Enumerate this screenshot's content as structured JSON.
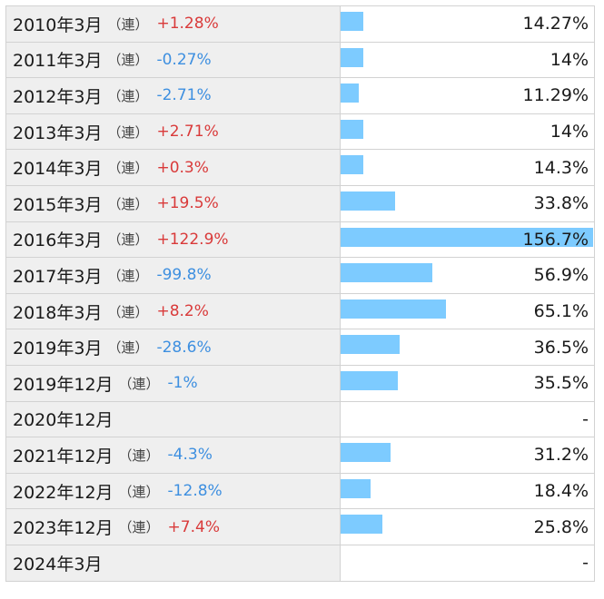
{
  "chart_data": {
    "type": "bar",
    "orientation": "horizontal",
    "max_value": 156.7,
    "rows": [
      {
        "period": "2010年3月",
        "cons": "（連）",
        "change": "+1.28%",
        "sign": "pos",
        "value": 14.27,
        "label": "14.27%"
      },
      {
        "period": "2011年3月",
        "cons": "（連）",
        "change": "-0.27%",
        "sign": "neg",
        "value": 14,
        "label": "14%"
      },
      {
        "period": "2012年3月",
        "cons": "（連）",
        "change": "-2.71%",
        "sign": "neg",
        "value": 11.29,
        "label": "11.29%"
      },
      {
        "period": "2013年3月",
        "cons": "（連）",
        "change": "+2.71%",
        "sign": "pos",
        "value": 14,
        "label": "14%"
      },
      {
        "period": "2014年3月",
        "cons": "（連）",
        "change": "+0.3%",
        "sign": "pos",
        "value": 14.3,
        "label": "14.3%"
      },
      {
        "period": "2015年3月",
        "cons": "（連）",
        "change": "+19.5%",
        "sign": "pos",
        "value": 33.8,
        "label": "33.8%"
      },
      {
        "period": "2016年3月",
        "cons": "（連）",
        "change": "+122.9%",
        "sign": "pos",
        "value": 156.7,
        "label": "156.7%"
      },
      {
        "period": "2017年3月",
        "cons": "（連）",
        "change": "-99.8%",
        "sign": "neg",
        "value": 56.9,
        "label": "56.9%"
      },
      {
        "period": "2018年3月",
        "cons": "（連）",
        "change": "+8.2%",
        "sign": "pos",
        "value": 65.1,
        "label": "65.1%"
      },
      {
        "period": "2019年3月",
        "cons": "（連）",
        "change": "-28.6%",
        "sign": "neg",
        "value": 36.5,
        "label": "36.5%"
      },
      {
        "period": "2019年12月",
        "cons": "（連）",
        "change": "-1%",
        "sign": "neg",
        "value": 35.5,
        "label": "35.5%"
      },
      {
        "period": "2020年12月",
        "cons": "",
        "change": "",
        "sign": "",
        "value": null,
        "label": "-"
      },
      {
        "period": "2021年12月",
        "cons": "（連）",
        "change": "-4.3%",
        "sign": "neg",
        "value": 31.2,
        "label": "31.2%"
      },
      {
        "period": "2022年12月",
        "cons": "（連）",
        "change": "-12.8%",
        "sign": "neg",
        "value": 18.4,
        "label": "18.4%"
      },
      {
        "period": "2023年12月",
        "cons": "（連）",
        "change": "+7.4%",
        "sign": "pos",
        "value": 25.8,
        "label": "25.8%"
      },
      {
        "period": "2024年3月",
        "cons": "",
        "change": "",
        "sign": "",
        "value": null,
        "label": "-"
      }
    ]
  },
  "colors": {
    "bar": "#7dcbff",
    "positive": "#d93a3a",
    "negative": "#3d8fe0",
    "label_bg": "#efefef",
    "border": "#d2d2d2"
  }
}
